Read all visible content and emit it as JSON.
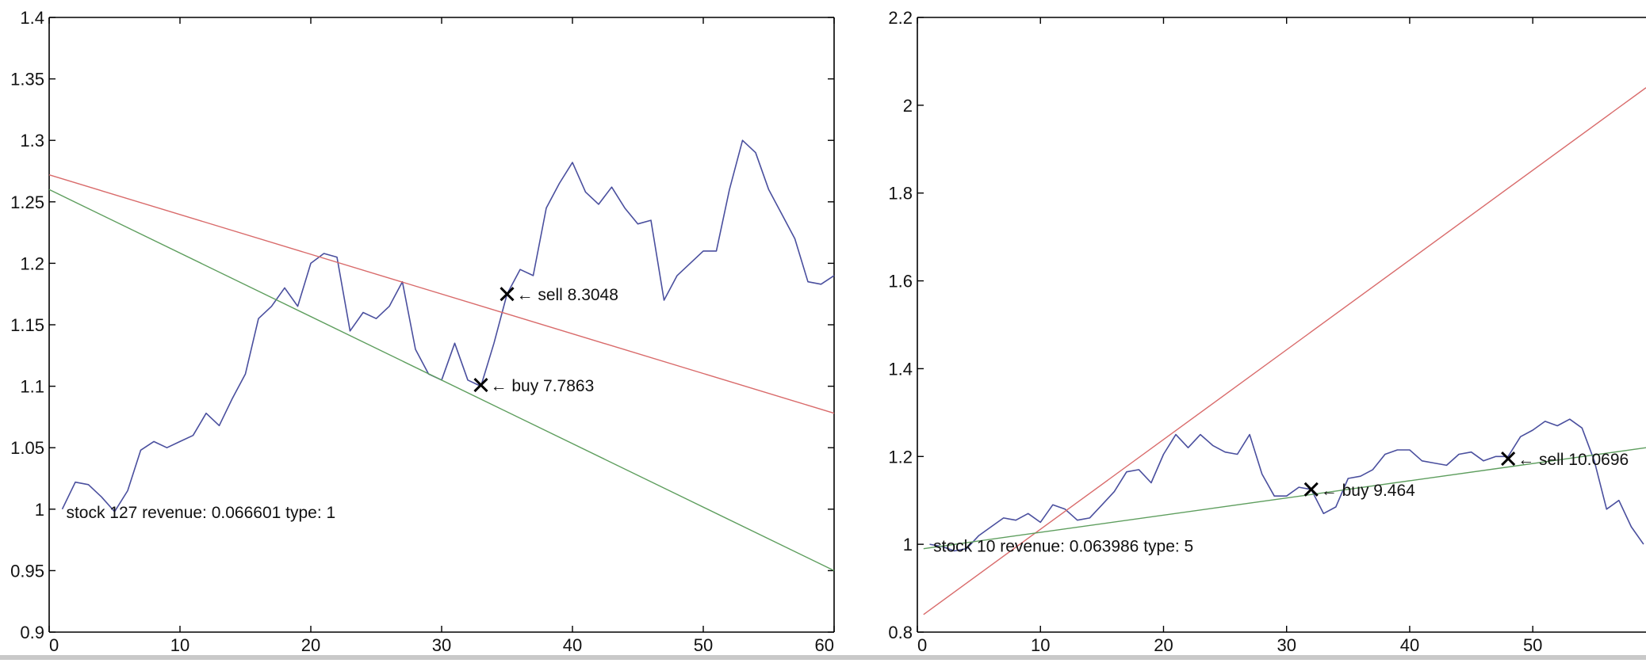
{
  "colors": {
    "price": "#4a4f9e",
    "upper_trend": "#d96b6b",
    "lower_trend": "#5e9e5e",
    "axis": "#000000",
    "marker": "#000000"
  },
  "chart_data": [
    {
      "type": "line",
      "title": "",
      "xlabel": "",
      "ylabel": "",
      "xlim": [
        0,
        60
      ],
      "ylim": [
        0.9,
        1.4
      ],
      "xticks": [
        0,
        10,
        20,
        30,
        40,
        50,
        60
      ],
      "xtick_labels": [
        "0",
        "10",
        "20",
        "30",
        "40",
        "50",
        "60"
      ],
      "yticks": [
        0.9,
        0.95,
        1.0,
        1.05,
        1.1,
        1.15,
        1.2,
        1.25,
        1.3,
        1.35,
        1.4
      ],
      "ytick_labels": [
        "0.9",
        "0.95",
        "1",
        "1.05",
        "1.1",
        "1.15",
        "1.2",
        "1.25",
        "1.3",
        "1.35",
        "1.4"
      ],
      "grid": false,
      "series": [
        {
          "role": "price",
          "color": "#4a4f9e",
          "x": [
            1,
            2,
            3,
            4,
            5,
            6,
            7,
            8,
            9,
            10,
            11,
            12,
            13,
            14,
            15,
            16,
            17,
            18,
            19,
            20,
            21,
            22,
            23,
            24,
            25,
            26,
            27,
            28,
            29,
            30,
            31,
            32,
            33,
            34,
            35,
            36,
            37,
            38,
            39,
            40,
            41,
            42,
            43,
            44,
            45,
            46,
            47,
            48,
            49,
            50,
            51,
            52,
            53,
            54,
            55,
            56,
            57,
            58,
            59,
            60
          ],
          "y": [
            1.0,
            1.022,
            1.02,
            1.01,
            0.998,
            1.015,
            1.048,
            1.055,
            1.05,
            1.055,
            1.06,
            1.078,
            1.068,
            1.09,
            1.11,
            1.155,
            1.165,
            1.18,
            1.165,
            1.2,
            1.208,
            1.205,
            1.145,
            1.16,
            1.155,
            1.165,
            1.185,
            1.13,
            1.11,
            1.105,
            1.135,
            1.105,
            1.1,
            1.135,
            1.175,
            1.195,
            1.19,
            1.245,
            1.265,
            1.282,
            1.258,
            1.248,
            1.262,
            1.245,
            1.232,
            1.235,
            1.17,
            1.19,
            1.2,
            1.21,
            1.21,
            1.26,
            1.3,
            1.29,
            1.26,
            1.24,
            1.22,
            1.185,
            1.183,
            1.19
          ]
        },
        {
          "role": "upper_trend",
          "color": "#d96b6b",
          "x": [
            0,
            60
          ],
          "y": [
            1.272,
            1.078
          ]
        },
        {
          "role": "lower_trend",
          "color": "#5e9e5e",
          "x": [
            0,
            60
          ],
          "y": [
            1.26,
            0.95
          ]
        }
      ],
      "markers": [
        {
          "x": 33,
          "y": 1.101,
          "label": "buy 7.7863"
        },
        {
          "x": 35,
          "y": 1.175,
          "label": "sell 8.3048"
        }
      ],
      "annotations": [
        {
          "x": 1.3,
          "y": 0.998,
          "text": "stock 127 revenue: 0.066601 type: 1"
        }
      ]
    },
    {
      "type": "line",
      "title": "",
      "xlabel": "",
      "ylabel": "",
      "xlim": [
        0,
        59.2
      ],
      "ylim": [
        0.8,
        2.2
      ],
      "xticks": [
        0,
        10,
        20,
        30,
        40,
        50
      ],
      "xtick_labels": [
        "0",
        "10",
        "20",
        "30",
        "40",
        "50"
      ],
      "yticks": [
        0.8,
        1.0,
        1.2,
        1.4,
        1.6,
        1.8,
        2.0,
        2.2
      ],
      "ytick_labels": [
        "0.8",
        "1",
        "1.2",
        "1.4",
        "1.6",
        "1.8",
        "2",
        "2.2"
      ],
      "grid": false,
      "series": [
        {
          "role": "price",
          "color": "#4a4f9e",
          "x": [
            1,
            2,
            3,
            4,
            5,
            6,
            7,
            8,
            9,
            10,
            11,
            12,
            13,
            14,
            15,
            16,
            17,
            18,
            19,
            20,
            21,
            22,
            23,
            24,
            25,
            26,
            27,
            28,
            29,
            30,
            31,
            32,
            33,
            34,
            35,
            36,
            37,
            38,
            39,
            40,
            41,
            42,
            43,
            44,
            45,
            46,
            47,
            48,
            49,
            50,
            51,
            52,
            53,
            54,
            55,
            56,
            57,
            58,
            59
          ],
          "y": [
            1.0,
            0.995,
            0.985,
            0.99,
            1.02,
            1.04,
            1.06,
            1.055,
            1.07,
            1.05,
            1.09,
            1.08,
            1.055,
            1.06,
            1.09,
            1.12,
            1.165,
            1.17,
            1.14,
            1.205,
            1.25,
            1.22,
            1.25,
            1.225,
            1.21,
            1.205,
            1.25,
            1.16,
            1.11,
            1.11,
            1.13,
            1.125,
            1.07,
            1.085,
            1.15,
            1.155,
            1.17,
            1.205,
            1.215,
            1.215,
            1.19,
            1.185,
            1.18,
            1.205,
            1.21,
            1.19,
            1.2,
            1.2,
            1.245,
            1.26,
            1.28,
            1.27,
            1.285,
            1.265,
            1.19,
            1.08,
            1.1,
            1.04,
            1.0
          ]
        },
        {
          "role": "upper_trend",
          "color": "#d96b6b",
          "x": [
            0.5,
            59.2
          ],
          "y": [
            0.84,
            2.04
          ]
        },
        {
          "role": "lower_trend",
          "color": "#5e9e5e",
          "x": [
            0.5,
            59.2
          ],
          "y": [
            0.99,
            1.22
          ]
        }
      ],
      "markers": [
        {
          "x": 32,
          "y": 1.125,
          "label": "buy 9.464"
        },
        {
          "x": 48,
          "y": 1.195,
          "label": "sell 10.0696"
        }
      ],
      "annotations": [
        {
          "x": 1.3,
          "y": 0.998,
          "text": "stock 10 revenue: 0.063986 type: 5"
        }
      ]
    }
  ]
}
